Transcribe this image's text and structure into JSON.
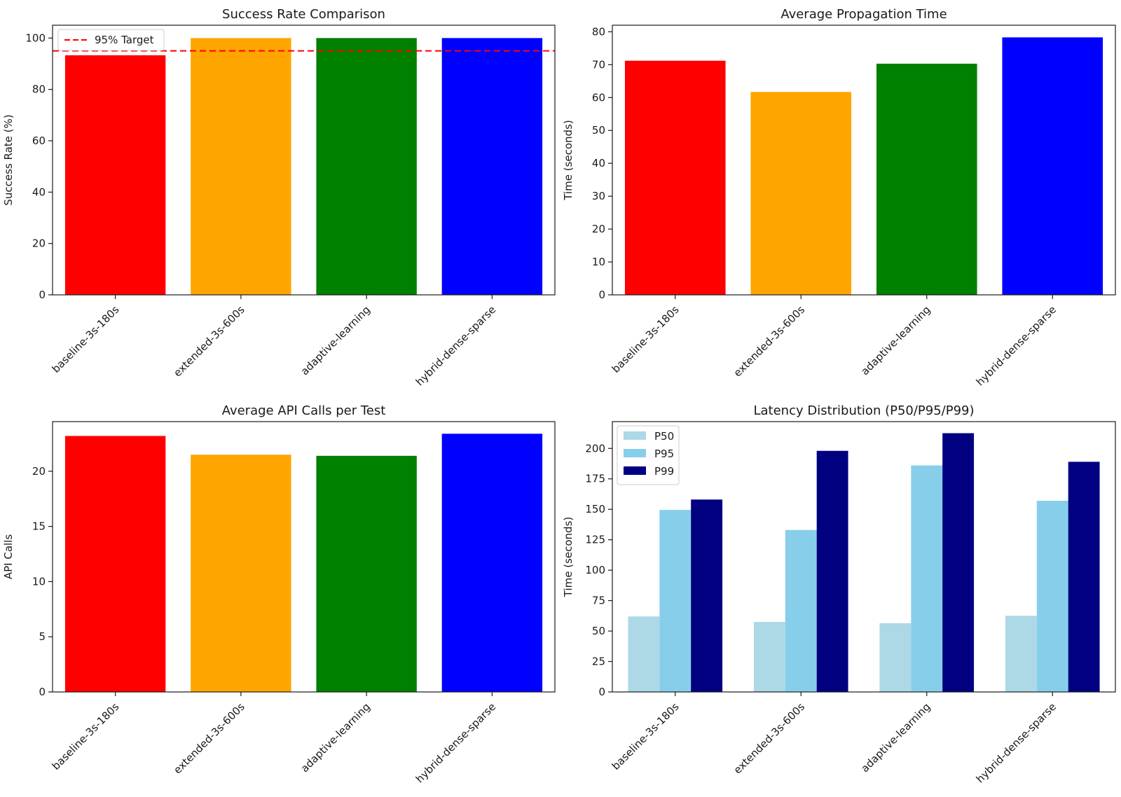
{
  "chart_data": [
    {
      "id": "success",
      "type": "bar",
      "title": "Success Rate Comparison",
      "xlabel": "",
      "ylabel": "Success Rate (%)",
      "ylim": [
        0,
        105
      ],
      "yticks": [
        0,
        20,
        40,
        60,
        80,
        100
      ],
      "categories": [
        "baseline-3s-180s",
        "extended-3s-600s",
        "adaptive-learning",
        "hybrid-dense-sparse"
      ],
      "values": [
        93.3,
        100,
        100,
        100
      ],
      "colors": [
        "#ff0000",
        "#ffa500",
        "#008000",
        "#0000ff"
      ],
      "reference_line": {
        "value": 95,
        "label": "95% Target",
        "color": "#ff0000",
        "style": "dashed"
      },
      "legend": {
        "placement": "top-left",
        "entries": [
          "95% Target"
        ]
      }
    },
    {
      "id": "propagation",
      "type": "bar",
      "title": "Average Propagation Time",
      "xlabel": "",
      "ylabel": "Time (seconds)",
      "ylim": [
        0,
        82
      ],
      "yticks": [
        0,
        10,
        20,
        30,
        40,
        50,
        60,
        70,
        80
      ],
      "categories": [
        "baseline-3s-180s",
        "extended-3s-600s",
        "adaptive-learning",
        "hybrid-dense-sparse"
      ],
      "values": [
        71.2,
        61.7,
        70.3,
        78.3
      ],
      "colors": [
        "#ff0000",
        "#ffa500",
        "#008000",
        "#0000ff"
      ]
    },
    {
      "id": "api",
      "type": "bar",
      "title": "Average API Calls per Test",
      "xlabel": "",
      "ylabel": "API Calls",
      "ylim": [
        0,
        24.5
      ],
      "yticks": [
        0,
        5,
        10,
        15,
        20
      ],
      "categories": [
        "baseline-3s-180s",
        "extended-3s-600s",
        "adaptive-learning",
        "hybrid-dense-sparse"
      ],
      "values": [
        23.2,
        21.5,
        21.4,
        23.4
      ],
      "colors": [
        "#ff0000",
        "#ffa500",
        "#008000",
        "#0000ff"
      ]
    },
    {
      "id": "latency",
      "type": "bar",
      "title": "Latency Distribution (P50/P95/P99)",
      "xlabel": "",
      "ylabel": "Time (seconds)",
      "ylim": [
        0,
        222
      ],
      "yticks": [
        0,
        25,
        50,
        75,
        100,
        125,
        150,
        175,
        200
      ],
      "categories": [
        "baseline-3s-180s",
        "extended-3s-600s",
        "adaptive-learning",
        "hybrid-dense-sparse"
      ],
      "series": [
        {
          "name": "P50",
          "color": "#add8e6",
          "values": [
            62,
            57.5,
            56.5,
            62.5
          ]
        },
        {
          "name": "P95",
          "color": "#87ceeb",
          "values": [
            149.5,
            133,
            186,
            157
          ]
        },
        {
          "name": "P99",
          "color": "#000080",
          "values": [
            158,
            198,
            212.5,
            189
          ]
        }
      ],
      "legend": {
        "placement": "top-left",
        "entries": [
          "P50",
          "P95",
          "P99"
        ]
      }
    }
  ]
}
